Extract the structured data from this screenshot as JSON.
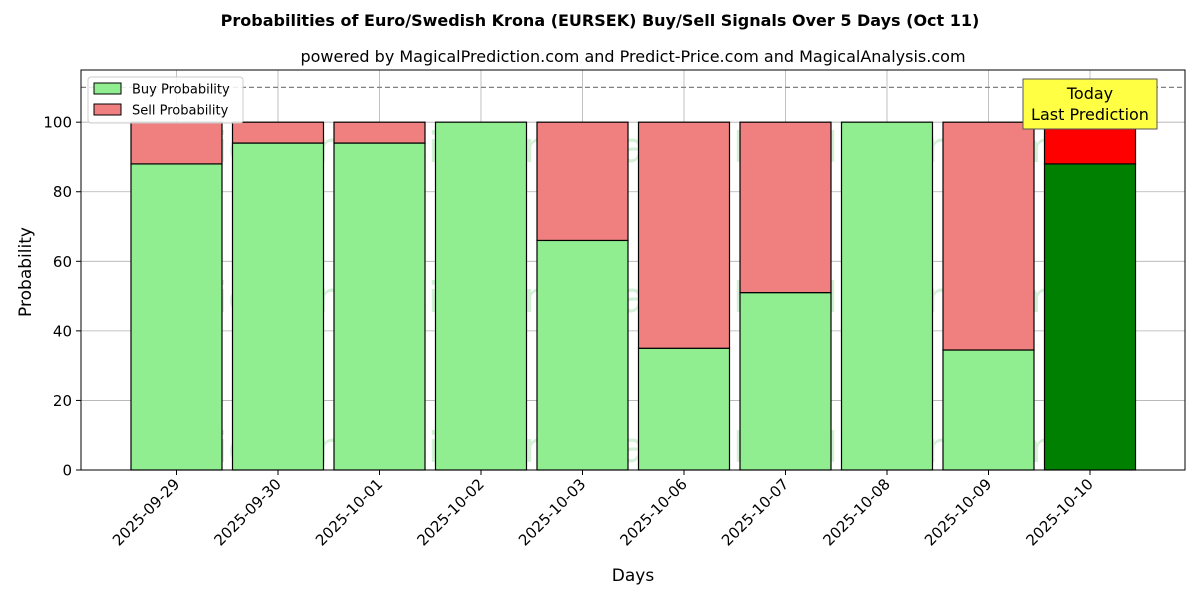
{
  "chart_data": {
    "type": "bar",
    "stacked": true,
    "title": "Probabilities of Euro/Swedish Krona (EURSEK) Buy/Sell Signals Over 5 Days (Oct 11)",
    "subtitle": "powered by MagicalPrediction.com and Predict-Price.com and MagicalAnalysis.com",
    "xlabel": "Days",
    "ylabel": "Probability",
    "ylim": [
      0,
      115
    ],
    "yticks": [
      0,
      20,
      40,
      60,
      80,
      100
    ],
    "grid": true,
    "legend_position": "top-left",
    "categories": [
      "2025-09-29",
      "2025-09-30",
      "2025-10-01",
      "2025-10-02",
      "2025-10-03",
      "2025-10-06",
      "2025-10-07",
      "2025-10-08",
      "2025-10-09",
      "2025-10-10"
    ],
    "series": [
      {
        "name": "Buy Probability",
        "color": "#90ee90",
        "highlight_color": "#008000",
        "values": [
          88,
          94,
          94,
          100,
          66,
          35,
          51,
          100,
          34.5,
          88
        ]
      },
      {
        "name": "Sell Probability",
        "color": "#f08080",
        "highlight_color": "#ff0000",
        "values": [
          12,
          6,
          6,
          0,
          34,
          65,
          49,
          0,
          65.5,
          12
        ]
      }
    ],
    "reference_line": {
      "y": 110,
      "style": "dashed",
      "color": "#808080"
    },
    "highlight_index": 9,
    "annotation": {
      "lines": [
        "Today",
        "Last Prediction"
      ],
      "background": "#ffff44"
    },
    "watermarks": [
      "MagicalAnalysis.com",
      "MagicalPrediction.com"
    ]
  }
}
